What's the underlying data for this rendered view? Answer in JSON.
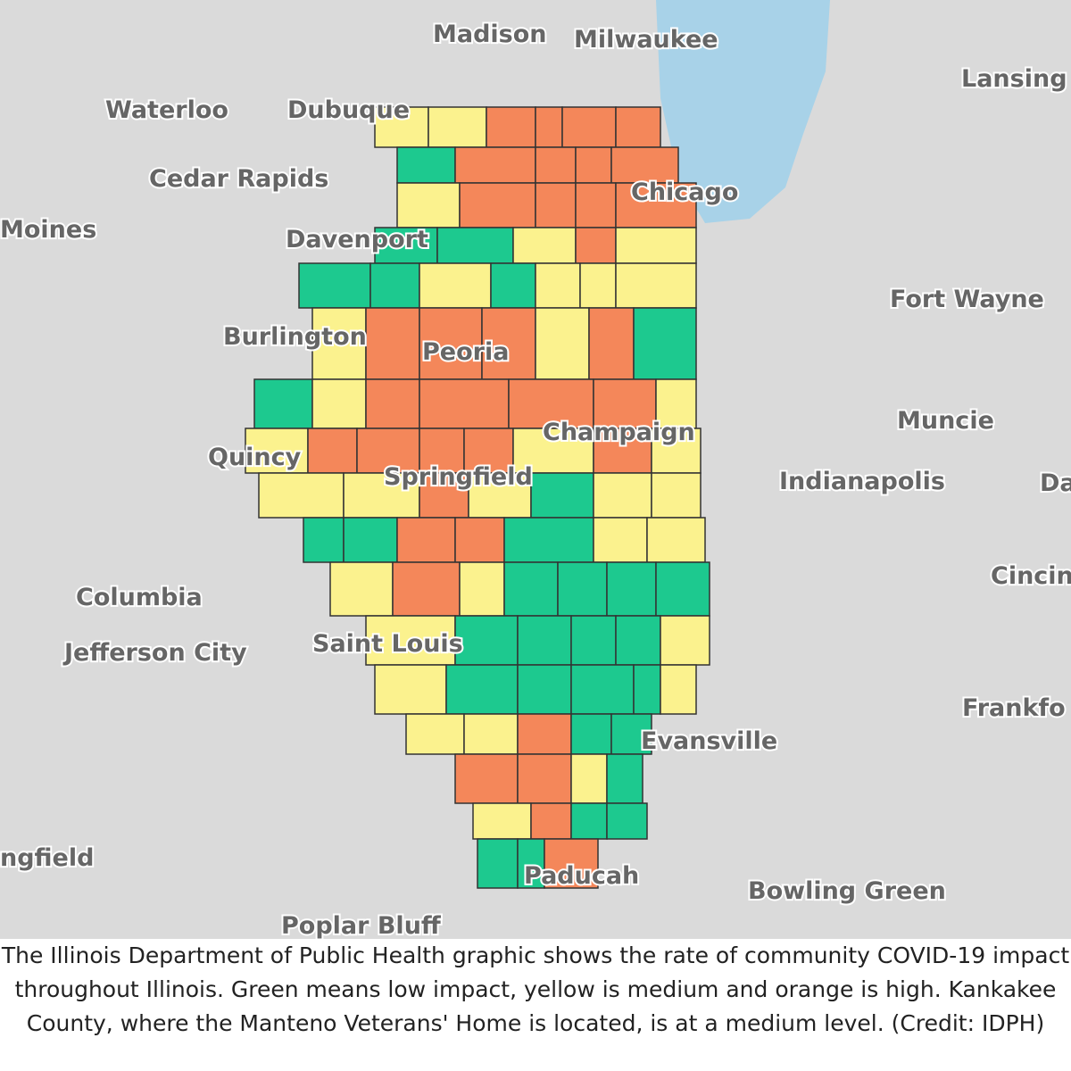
{
  "map": {
    "labels": [
      "Madison",
      "Milwaukee",
      "Lansing",
      "Waterloo",
      "Dubuque",
      "Cedar Rapids",
      "Moines",
      "Davenport",
      "Chicago",
      "Fort Wayne",
      "Burlington",
      "Peoria",
      "Muncie",
      "Champaign",
      "Quincy",
      "Springfield",
      "Indianapolis",
      "Da",
      "Cincin",
      "Columbia",
      "Jefferson City",
      "Saint Louis",
      "Frankfo",
      "Evansville",
      "ngfield",
      "Paducah",
      "Bowling Green",
      "Poplar Bluff"
    ]
  },
  "caption": [
    "The Illinois Department of Public Health graphic shows the rate of community COVID-19 impact",
    "throughout Illinois. Green means low impact, yellow is medium and orange is high. Kankakee",
    "County, where the Manteno Veterans' Home is located, is at a medium level. (Credit: IDPH)"
  ]
}
